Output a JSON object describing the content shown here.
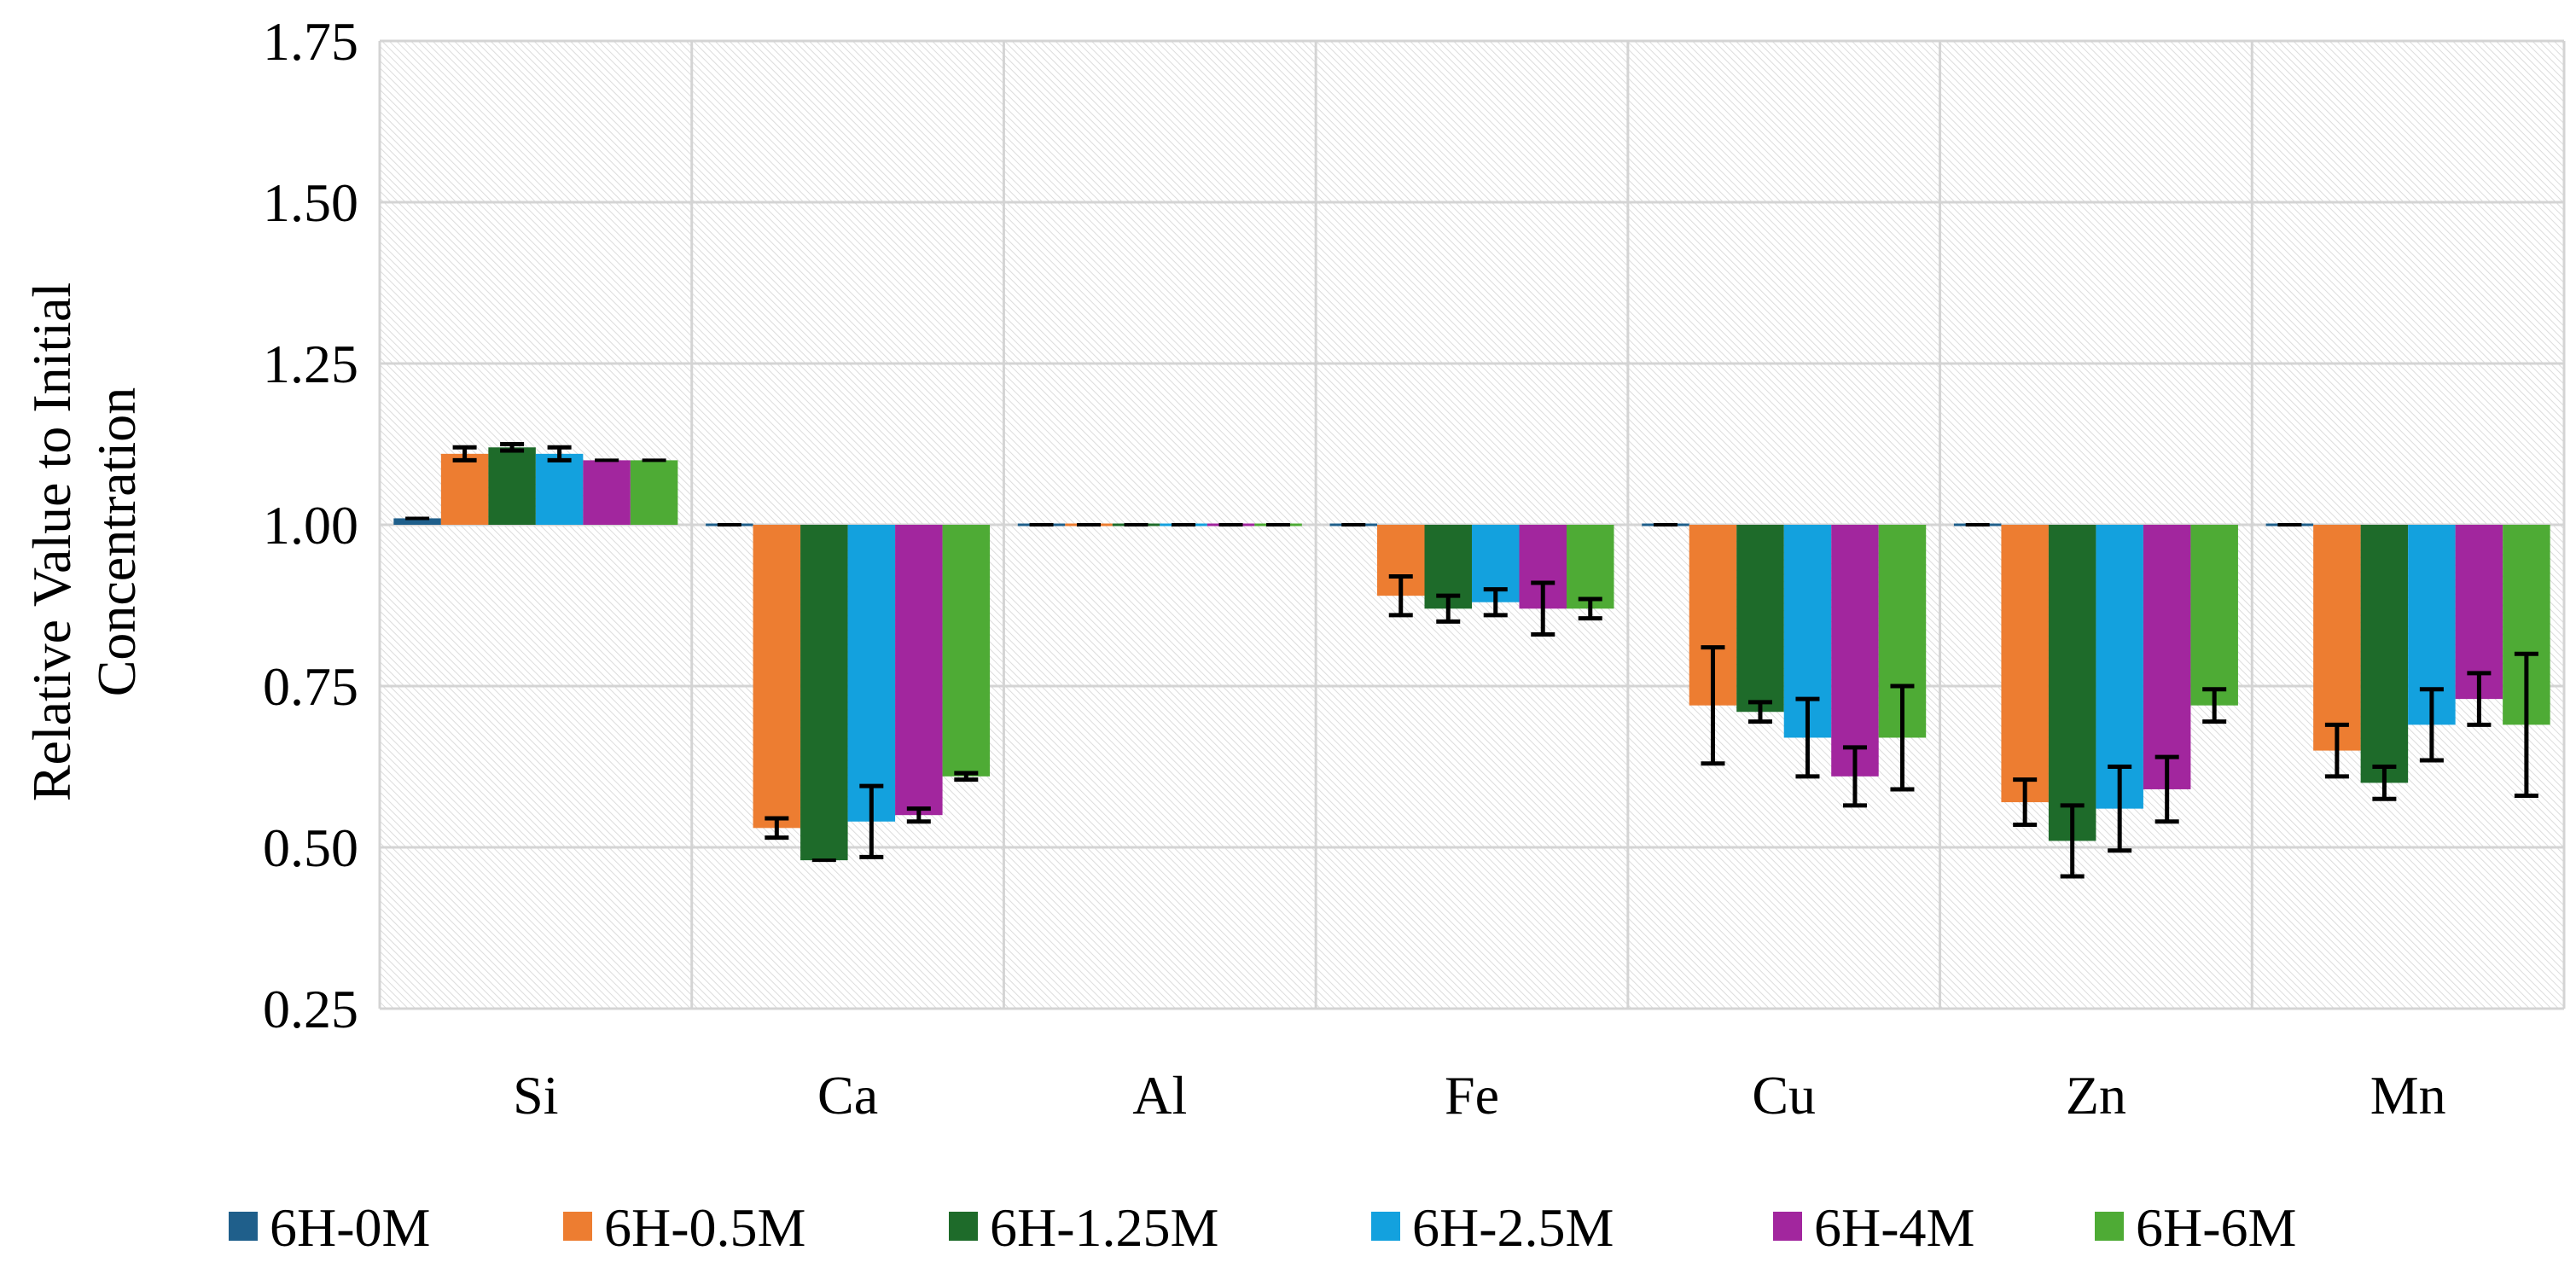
{
  "chart_data": {
    "type": "bar",
    "title": "",
    "xlabel": "",
    "ylabel_lines": [
      "Relative Value to Initial",
      "Concentration"
    ],
    "baseline": 1.0,
    "ylim": [
      0.25,
      1.75
    ],
    "yticks": [
      "0.25",
      "0.50",
      "0.75",
      "1.00",
      "1.25",
      "1.50",
      "1.75"
    ],
    "grid": true,
    "legend_position": "bottom",
    "categories": [
      "Si",
      "Ca",
      "Al",
      "Fe",
      "Cu",
      "Zn",
      "Mn"
    ],
    "series": [
      {
        "name": "6H-0M",
        "color": "#1f5f8b",
        "values": [
          1.01,
          1.0,
          1.0,
          1.0,
          1.0,
          1.0,
          1.0
        ],
        "errors": [
          0.0,
          0.0,
          0.0,
          0.0,
          0.0,
          0.0,
          0.0
        ]
      },
      {
        "name": "6H-0.5M",
        "color": "#ed7d31",
        "values": [
          1.11,
          0.53,
          1.0,
          0.89,
          0.72,
          0.57,
          0.65
        ],
        "errors": [
          0.01,
          0.015,
          0.0,
          0.03,
          0.09,
          0.035,
          0.04
        ]
      },
      {
        "name": "6H-1.25M",
        "color": "#1e6b2a",
        "values": [
          1.12,
          0.48,
          1.0,
          0.87,
          0.71,
          0.51,
          0.6
        ],
        "errors": [
          0.005,
          0.0,
          0.0,
          0.02,
          0.015,
          0.055,
          0.025
        ]
      },
      {
        "name": "6H-2.5M",
        "color": "#13a1de",
        "values": [
          1.11,
          0.54,
          1.0,
          0.88,
          0.67,
          0.56,
          0.69
        ],
        "errors": [
          0.01,
          0.055,
          0.0,
          0.02,
          0.06,
          0.065,
          0.055
        ]
      },
      {
        "name": "6H-4M",
        "color": "#a2269e",
        "values": [
          1.1,
          0.55,
          1.0,
          0.87,
          0.61,
          0.59,
          0.73
        ],
        "errors": [
          0.0,
          0.01,
          0.0,
          0.04,
          0.045,
          0.05,
          0.04
        ]
      },
      {
        "name": "6H-6M",
        "color": "#4eab35",
        "values": [
          1.1,
          0.61,
          1.0,
          0.87,
          0.67,
          0.72,
          0.69
        ],
        "errors": [
          0.0,
          0.005,
          0.0,
          0.015,
          0.08,
          0.025,
          0.11
        ]
      }
    ]
  }
}
